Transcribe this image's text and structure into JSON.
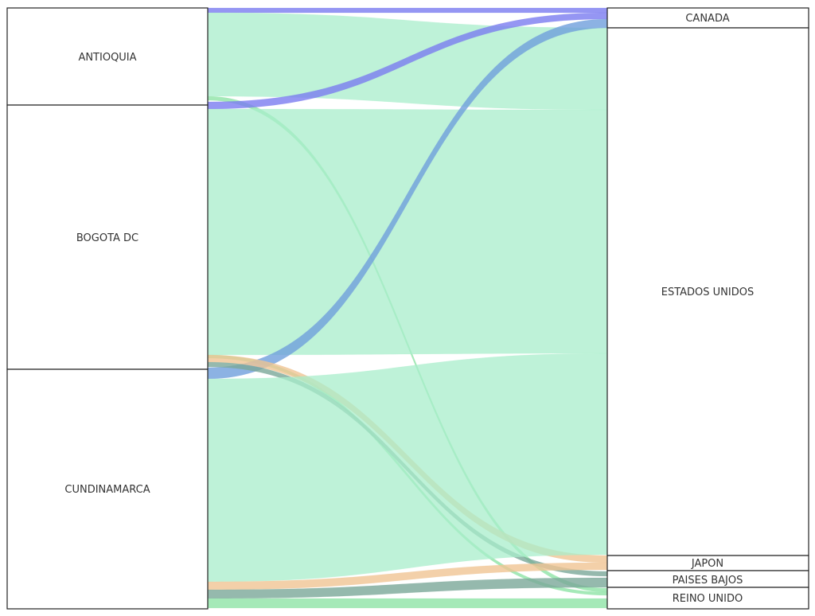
{
  "sources": [
    {
      "id": "antioquia",
      "label": "ANTIOQUIA"
    },
    {
      "id": "bogota",
      "label": "BOGOTA DC"
    },
    {
      "id": "cundinamarca",
      "label": "CUNDINAMARCA"
    }
  ],
  "targets": [
    {
      "id": "canada",
      "label": "CANADA"
    },
    {
      "id": "estados_unidos",
      "label": "ESTADOS UNIDOS"
    },
    {
      "id": "japon",
      "label": "JAPON"
    },
    {
      "id": "paises_bajos",
      "label": "PAISES BAJOS"
    },
    {
      "id": "reino_unido",
      "label": "REINO UNIDO"
    }
  ],
  "colors": {
    "estados_unidos": "#a8eecb",
    "canada": "#7b7cf0",
    "canada_cross": "#6f9fdc",
    "japon": "#f0c493",
    "paises_bajos": "#7aa898",
    "reino_unido": "#8fe3a6",
    "node_stroke": "#222222"
  }
}
